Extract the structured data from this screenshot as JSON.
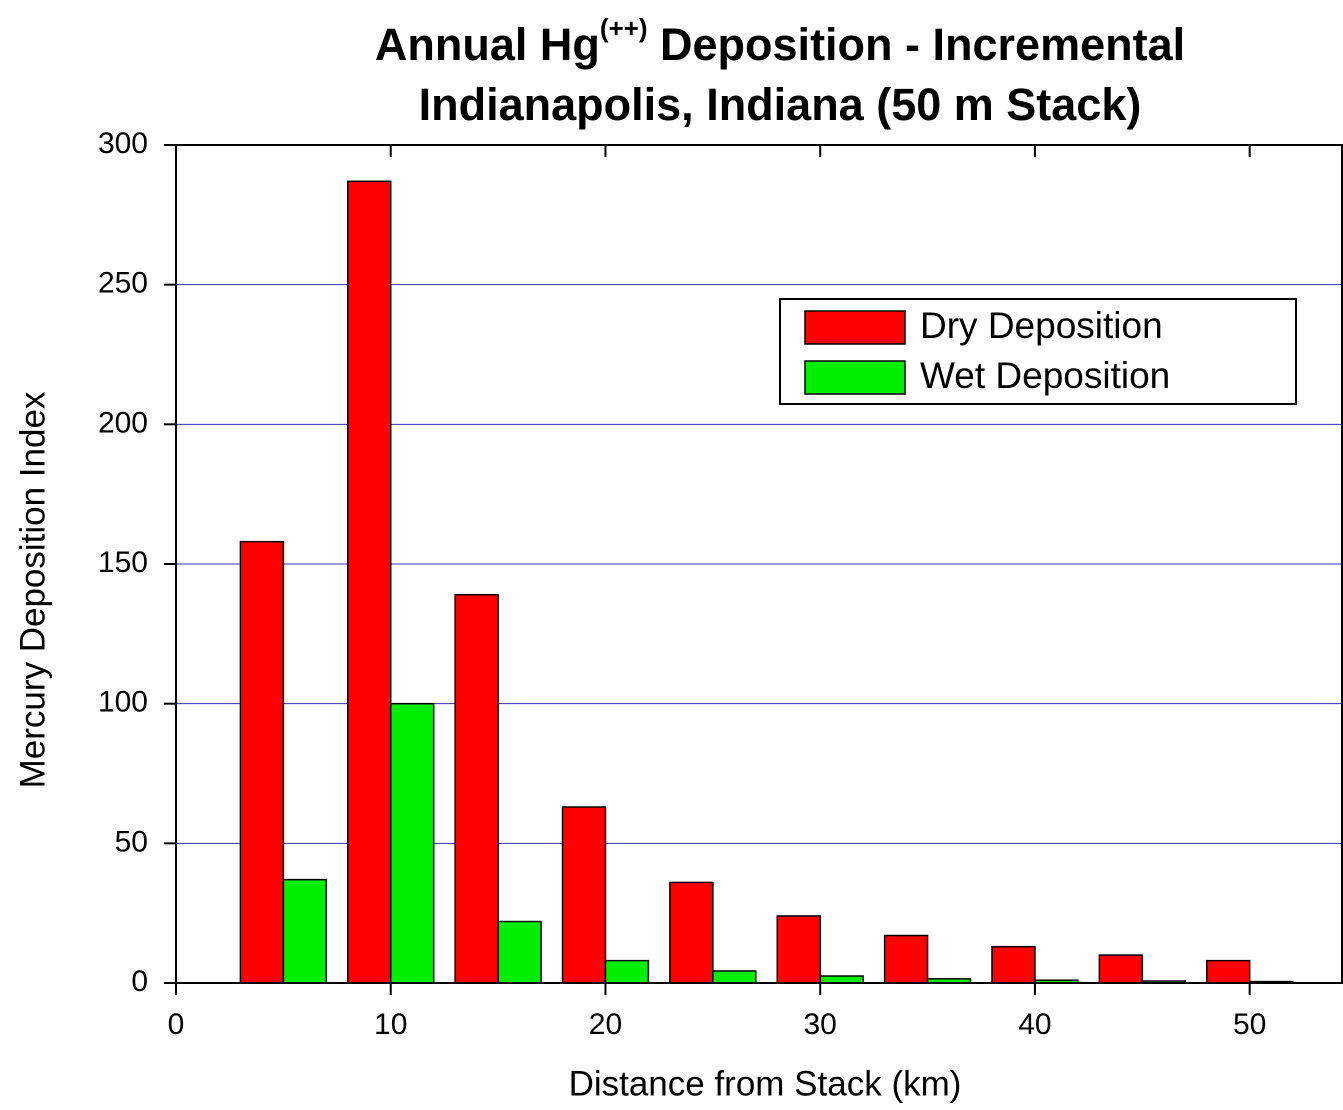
{
  "chart_data": {
    "type": "bar",
    "title": [
      "Annual Hg",
      "(++)",
      " Deposition - Incremental"
    ],
    "subtitle": "Indianapolis, Indiana (50 m Stack)",
    "xlabel": "Distance from Stack (km)",
    "ylabel": "Mercury Deposition Index",
    "x": [
      5,
      10,
      15,
      20,
      25,
      30,
      35,
      40,
      45,
      50
    ],
    "series": [
      {
        "name": "Dry Deposition",
        "color": "#ff0000",
        "values": [
          158,
          287,
          139,
          63,
          36,
          24,
          17,
          13,
          10,
          8
        ]
      },
      {
        "name": "Wet Deposition",
        "color": "#00ee00",
        "values": [
          37,
          100,
          22,
          8,
          4.3,
          2.5,
          1.5,
          1,
          0.7,
          0.5
        ]
      }
    ],
    "xlim": [
      0,
      54.3
    ],
    "xticks": [
      0,
      10,
      20,
      30,
      40,
      50
    ],
    "ylim": [
      0,
      300
    ],
    "yticks": [
      0,
      50,
      100,
      150,
      200,
      250,
      300
    ],
    "grid": true,
    "legend": "upper right"
  }
}
